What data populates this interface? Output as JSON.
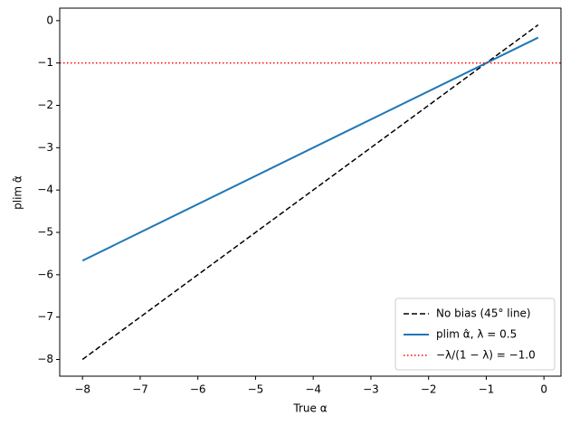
{
  "chart_data": {
    "type": "line",
    "xlabel": "True α",
    "ylabel": "plim α̂",
    "x": [
      -8,
      -0.1
    ],
    "series": [
      {
        "name": "No bias (45° line)",
        "color": "#000000",
        "style": "dashed",
        "values": [
          -8,
          -0.1
        ]
      },
      {
        "name": "plim α̂, λ = 0.5",
        "color": "#1f77b4",
        "style": "solid",
        "values": [
          -5.667,
          -0.4
        ]
      }
    ],
    "hlines": [
      {
        "name": "−λ/(1 − λ) = −1.0",
        "color": "#ff0000",
        "style": "dotted",
        "value": -1
      }
    ],
    "xlim": [
      -8.395,
      0.295
    ],
    "ylim": [
      -8.395,
      0.295
    ],
    "xticks": [
      {
        "value": -8,
        "label": "−8"
      },
      {
        "value": -7,
        "label": "−7"
      },
      {
        "value": -6,
        "label": "−6"
      },
      {
        "value": -5,
        "label": "−5"
      },
      {
        "value": -4,
        "label": "−4"
      },
      {
        "value": -3,
        "label": "−3"
      },
      {
        "value": -2,
        "label": "−2"
      },
      {
        "value": -1,
        "label": "−1"
      },
      0
    ],
    "yticks": [
      0,
      {
        "value": -1,
        "label": "−1"
      },
      {
        "value": -2,
        "label": "−2"
      },
      {
        "value": -3,
        "label": "−3"
      },
      {
        "value": -4,
        "label": "−4"
      },
      {
        "value": -5,
        "label": "−5"
      },
      {
        "value": -6,
        "label": "−6"
      },
      {
        "value": -7,
        "label": "−7"
      },
      {
        "value": -8,
        "label": "−8"
      }
    ],
    "legend": "lower right",
    "grid": false
  }
}
